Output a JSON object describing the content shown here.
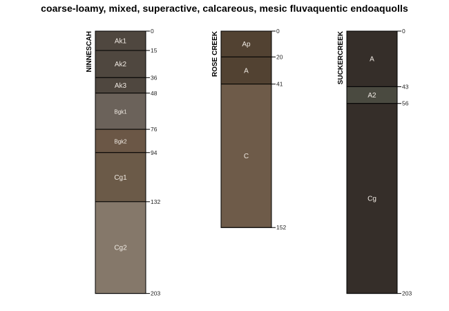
{
  "title": "coarse-loamy, mixed, superactive, calcareous, mesic fluvaquentic endoaquolls",
  "profiles": [
    {
      "name": "NINNESCAH",
      "horizons": [
        {
          "name": "Ak1",
          "top": 0,
          "bottom": 15,
          "color": "#4f473f"
        },
        {
          "name": "Ak2",
          "top": 15,
          "bottom": 36,
          "color": "#4f473f"
        },
        {
          "name": "Ak3",
          "top": 36,
          "bottom": 48,
          "color": "#4f473f"
        },
        {
          "name": "Bgk1",
          "top": 48,
          "bottom": 76,
          "color": "#6b625a"
        },
        {
          "name": "Bgk2",
          "top": 76,
          "bottom": 94,
          "color": "#6b5746"
        },
        {
          "name": "Cg1",
          "top": 94,
          "bottom": 132,
          "color": "#6b5a48"
        },
        {
          "name": "Cg2",
          "top": 132,
          "bottom": 203,
          "color": "#85786a"
        }
      ]
    },
    {
      "name": "ROSE CREEK",
      "horizons": [
        {
          "name": "Ap",
          "top": 0,
          "bottom": 20,
          "color": "#524232"
        },
        {
          "name": "A",
          "top": 20,
          "bottom": 41,
          "color": "#524232"
        },
        {
          "name": "C",
          "top": 41,
          "bottom": 152,
          "color": "#6e5b49"
        }
      ]
    },
    {
      "name": "SUCKERCREEK",
      "horizons": [
        {
          "name": "A",
          "top": 0,
          "bottom": 43,
          "color": "#352e29"
        },
        {
          "name": "A2",
          "top": 43,
          "bottom": 56,
          "color": "#4a4a40"
        },
        {
          "name": "Cg",
          "top": 56,
          "bottom": 203,
          "color": "#352e29"
        }
      ]
    }
  ]
}
